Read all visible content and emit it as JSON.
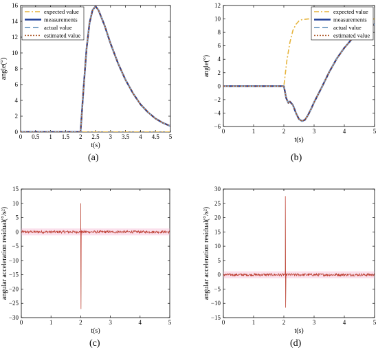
{
  "colors": {
    "expected": "#e6b43c",
    "measurements": "#1f3f99",
    "actual": "#7fa6c9",
    "estimated": "#a9501f",
    "residual_band": "#f3a6c8",
    "residual_line": "#d41f1f",
    "residual_dark": "#3a6b1a"
  },
  "chart_data": [
    {
      "type": "line",
      "caption": "(a)",
      "xlabel": "t(s)",
      "ylabel": "angle(°)",
      "xlim": [
        0,
        5
      ],
      "ylim": [
        0,
        16
      ],
      "xticks": [
        "0",
        "0.5",
        "1",
        "1.5",
        "2",
        "2.5",
        "3",
        "3.5",
        "4",
        "4.5",
        "5"
      ],
      "yticks": [
        "0",
        "2",
        "4",
        "6",
        "8",
        "10",
        "12",
        "14",
        "16"
      ],
      "legend": [
        "expected value",
        "measurements",
        "actual value",
        "estimated value"
      ],
      "legend_position": "top-left",
      "grid": false,
      "series": [
        {
          "name": "expected value",
          "x": [
            0,
            5
          ],
          "y": [
            0,
            0
          ]
        },
        {
          "name": "measurements",
          "x": [
            0,
            2,
            2.1,
            2.2,
            2.3,
            2.4,
            2.5,
            2.6,
            2.8,
            3,
            3.25,
            3.5,
            3.75,
            4,
            4.25,
            4.5,
            4.75,
            5
          ],
          "y": [
            0,
            0,
            5.5,
            10.5,
            13.8,
            15.4,
            15.9,
            15.4,
            13.5,
            11.2,
            8.7,
            6.6,
            4.9,
            3.5,
            2.5,
            1.7,
            1.15,
            0.75
          ]
        },
        {
          "name": "actual value",
          "x": [
            0,
            2,
            2.1,
            2.2,
            2.3,
            2.4,
            2.5,
            2.6,
            2.8,
            3,
            3.25,
            3.5,
            3.75,
            4,
            4.25,
            4.5,
            4.75,
            5
          ],
          "y": [
            0,
            0,
            5.5,
            10.5,
            13.8,
            15.4,
            15.9,
            15.4,
            13.5,
            11.2,
            8.7,
            6.6,
            4.9,
            3.5,
            2.5,
            1.7,
            1.15,
            0.75
          ]
        },
        {
          "name": "estimated value",
          "x": [
            0,
            2,
            2.1,
            2.2,
            2.3,
            2.4,
            2.5,
            2.6,
            2.8,
            3,
            3.25,
            3.5,
            3.75,
            4,
            4.25,
            4.5,
            4.75,
            5
          ],
          "y": [
            0,
            0,
            5.5,
            10.5,
            13.8,
            15.4,
            15.9,
            15.4,
            13.5,
            11.2,
            8.7,
            6.6,
            4.9,
            3.5,
            2.5,
            1.7,
            1.15,
            0.75
          ]
        }
      ]
    },
    {
      "type": "line",
      "caption": "(b)",
      "xlabel": "t(s)",
      "ylabel": "angle(°)",
      "xlim": [
        0,
        5
      ],
      "ylim": [
        -6,
        12
      ],
      "xticks": [
        "0",
        "1",
        "2",
        "3",
        "4",
        "5"
      ],
      "yticks": [
        "−6",
        "−4",
        "−2",
        "0",
        "2",
        "4",
        "6",
        "8",
        "10",
        "12"
      ],
      "legend": [
        "expected value",
        "measurements",
        "actual value",
        "estimated value"
      ],
      "legend_position": "top-right",
      "grid": false,
      "series": [
        {
          "name": "expected value",
          "x": [
            0,
            2,
            2.1,
            2.2,
            2.3,
            2.4,
            2.5,
            2.6,
            2.8,
            3,
            5
          ],
          "y": [
            0,
            0,
            3.8,
            6.5,
            8.3,
            9.2,
            9.7,
            9.9,
            10,
            10,
            10
          ]
        },
        {
          "name": "measurements",
          "x": [
            0,
            2,
            2.08,
            2.15,
            2.2,
            2.3,
            2.4,
            2.5,
            2.6,
            2.7,
            2.8,
            2.9,
            3,
            3.25,
            3.5,
            3.75,
            4,
            4.25,
            4.5,
            4.75,
            5
          ],
          "y": [
            0,
            0,
            -1.8,
            -2.5,
            -2.3,
            -2.8,
            -4,
            -4.9,
            -5.2,
            -5,
            -4.3,
            -3.4,
            -2.4,
            -0.2,
            2.1,
            4.1,
            5.7,
            7,
            8,
            8.7,
            9.2
          ]
        },
        {
          "name": "actual value",
          "x": [
            0,
            2,
            2.08,
            2.15,
            2.2,
            2.3,
            2.4,
            2.5,
            2.6,
            2.7,
            2.8,
            2.9,
            3,
            3.25,
            3.5,
            3.75,
            4,
            4.25,
            4.5,
            4.75,
            5
          ],
          "y": [
            0,
            0,
            -1.8,
            -2.5,
            -2.3,
            -2.8,
            -4,
            -4.9,
            -5.2,
            -5,
            -4.3,
            -3.4,
            -2.4,
            -0.2,
            2.1,
            4.1,
            5.7,
            7,
            8,
            8.7,
            9.2
          ]
        },
        {
          "name": "estimated value",
          "x": [
            0,
            2,
            2.08,
            2.15,
            2.2,
            2.3,
            2.4,
            2.5,
            2.6,
            2.7,
            2.8,
            2.9,
            3,
            3.25,
            3.5,
            3.75,
            4,
            4.25,
            4.5,
            4.75,
            5
          ],
          "y": [
            0,
            0,
            -1.8,
            -2.5,
            -2.3,
            -2.8,
            -4,
            -4.9,
            -5.2,
            -5,
            -4.3,
            -3.4,
            -2.4,
            -0.2,
            2.1,
            4.1,
            5.7,
            7,
            8,
            8.7,
            9.2
          ]
        }
      ]
    },
    {
      "type": "line",
      "caption": "(c)",
      "xlabel": "t(s)",
      "ylabel": "angular acceleration residual(°/s²)",
      "xlim": [
        0,
        5
      ],
      "ylim": [
        -30,
        15
      ],
      "xticks": [
        "0",
        "1",
        "2",
        "3",
        "4",
        "5"
      ],
      "yticks": [
        "−30",
        "−25",
        "−20",
        "−15",
        "−10",
        "−5",
        "0",
        "5",
        "10",
        "15"
      ],
      "grid": false,
      "noise_band": 1.2,
      "noise_amplitude": 0.45,
      "spikes": [
        {
          "x": 2.0,
          "min": -27,
          "max": 10
        }
      ]
    },
    {
      "type": "line",
      "caption": "(d)",
      "xlabel": "t(s)",
      "ylabel": "angular acceleration residual(°/s²)",
      "xlim": [
        0,
        5
      ],
      "ylim": [
        -15,
        30
      ],
      "xticks": [
        "0",
        "1",
        "2",
        "3",
        "4",
        "5"
      ],
      "yticks": [
        "−15",
        "−10",
        "−5",
        "0",
        "5",
        "10",
        "15",
        "20",
        "25",
        "30"
      ],
      "grid": false,
      "noise_band": 1.2,
      "noise_amplitude": 0.45,
      "spikes": [
        {
          "x": 2.05,
          "min": -11.5,
          "max": 27.5
        }
      ]
    }
  ]
}
